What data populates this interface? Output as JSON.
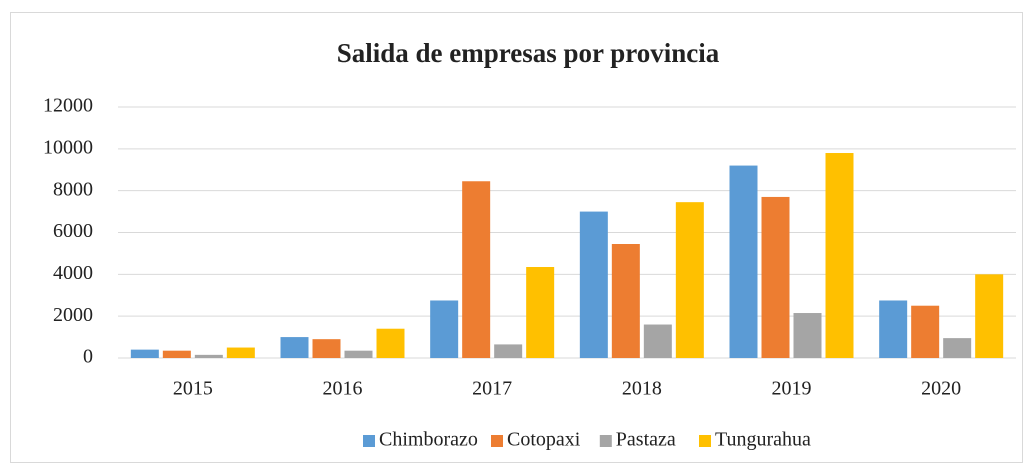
{
  "chart_data": {
    "type": "bar",
    "title": "Salida de empresas por provincia",
    "categories": [
      "2015",
      "2016",
      "2017",
      "2018",
      "2019",
      "2020"
    ],
    "series": [
      {
        "name": "Chimborazo",
        "color": "#5b9bd5",
        "values": [
          400,
          1000,
          2750,
          7000,
          9200,
          2750
        ]
      },
      {
        "name": "Cotopaxi",
        "color": "#ed7d31",
        "values": [
          350,
          900,
          8450,
          5450,
          7700,
          2500
        ]
      },
      {
        "name": "Pastaza",
        "color": "#a5a5a5",
        "values": [
          150,
          350,
          650,
          1600,
          2150,
          950
        ]
      },
      {
        "name": "Tungurahua",
        "color": "#ffc000",
        "values": [
          500,
          1400,
          4350,
          7450,
          9800,
          4000
        ]
      }
    ],
    "ylim": [
      0,
      12000
    ],
    "yticks": [
      0,
      2000,
      4000,
      6000,
      8000,
      10000,
      12000
    ],
    "grid": true,
    "legend": "bottom"
  }
}
